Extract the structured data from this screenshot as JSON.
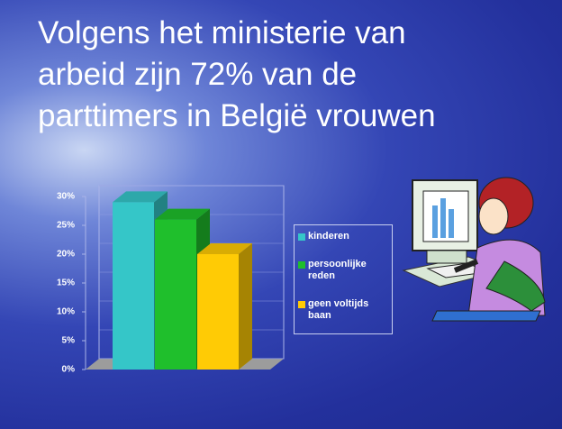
{
  "chart_data": {
    "type": "bar3d",
    "title": "Volgens het ministerie van arbeid zijn 72% van de parttimers in België vrouwen",
    "categories": [
      null
    ],
    "series": [
      {
        "name": "kinderen",
        "color": "#35c6c8",
        "values": [
          29
        ]
      },
      {
        "name": "persoonlijke reden",
        "color": "#1fbf2c",
        "values": [
          26
        ]
      },
      {
        "name": "geen voltijds baan",
        "color": "#ffcb05",
        "values": [
          20
        ]
      }
    ],
    "ylim": [
      0,
      30
    ],
    "yticks": [
      {
        "value": 0,
        "label": "0%"
      },
      {
        "value": 5,
        "label": "5%"
      },
      {
        "value": 10,
        "label": "10%"
      },
      {
        "value": 15,
        "label": "15%"
      },
      {
        "value": 20,
        "label": "20%"
      },
      {
        "value": 25,
        "label": "25%"
      },
      {
        "value": 30,
        "label": "30%"
      }
    ],
    "grid": true
  }
}
